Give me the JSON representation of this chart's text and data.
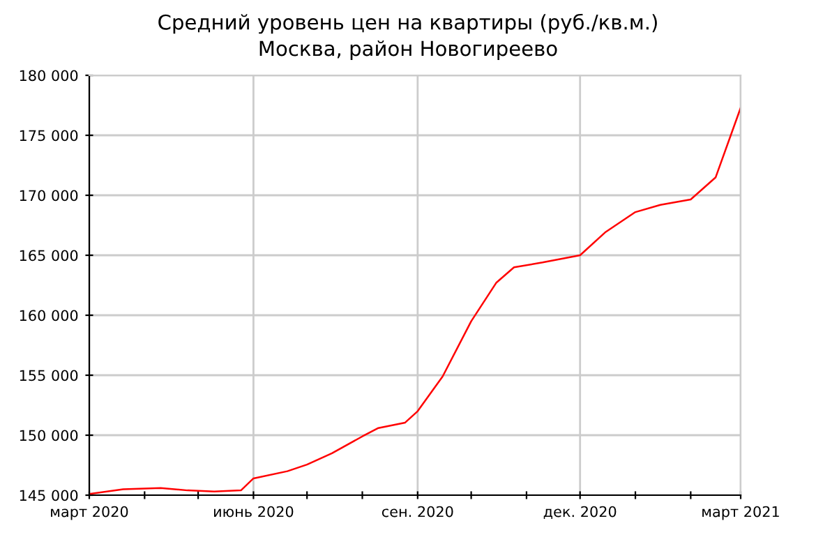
{
  "chart_data": {
    "type": "line",
    "title": "Средний уровень цен на квартиры (руб./кв.м.)",
    "subtitle": "Москва, район Новогиреево",
    "x": [
      "2020-03-01",
      "2020-03-20",
      "2020-04-10",
      "2020-04-25",
      "2020-05-10",
      "2020-05-25",
      "2020-06-01",
      "2020-06-20",
      "2020-07-01",
      "2020-07-15",
      "2020-08-01",
      "2020-08-10",
      "2020-08-25",
      "2020-09-01",
      "2020-09-15",
      "2020-10-01",
      "2020-10-15",
      "2020-10-25",
      "2020-11-10",
      "2020-12-01",
      "2020-12-15",
      "2021-01-01",
      "2021-01-15",
      "2021-02-01",
      "2021-02-15",
      "2021-03-01"
    ],
    "series": [
      {
        "color": "#ff0000",
        "values": [
          145100,
          145500,
          145600,
          145400,
          145300,
          145400,
          146400,
          147000,
          147550,
          148500,
          149900,
          150600,
          151050,
          152000,
          154900,
          159500,
          162700,
          164000,
          164400,
          165000,
          166900,
          168600,
          169200,
          169650,
          171500,
          177300
        ]
      }
    ],
    "xlim": [
      "2020-03-01",
      "2021-03-01"
    ],
    "xticks": [
      {
        "value": "2020-03-01",
        "label": "март 2020"
      },
      {
        "value": "2020-04-01",
        "label": null
      },
      {
        "value": "2020-05-01",
        "label": null
      },
      {
        "value": "2020-06-01",
        "label": "июнь 2020"
      },
      {
        "value": "2020-07-01",
        "label": null
      },
      {
        "value": "2020-08-01",
        "label": null
      },
      {
        "value": "2020-09-01",
        "label": "сен. 2020"
      },
      {
        "value": "2020-10-01",
        "label": null
      },
      {
        "value": "2020-11-01",
        "label": null
      },
      {
        "value": "2020-12-01",
        "label": "дек. 2020"
      },
      {
        "value": "2021-01-01",
        "label": null
      },
      {
        "value": "2021-02-01",
        "label": null
      },
      {
        "value": "2021-03-01",
        "label": "март 2021"
      }
    ],
    "ylim": [
      145000,
      180000
    ],
    "yticks": [
      {
        "value": 145000,
        "label": "145 000"
      },
      {
        "value": 150000,
        "label": "150 000"
      },
      {
        "value": 155000,
        "label": "155 000"
      },
      {
        "value": 160000,
        "label": "160 000"
      },
      {
        "value": 165000,
        "label": "165 000"
      },
      {
        "value": 170000,
        "label": "170 000"
      },
      {
        "value": 175000,
        "label": "175 000"
      },
      {
        "value": 180000,
        "label": "180 000"
      }
    ],
    "grid": true,
    "legend": false,
    "marker": "none",
    "line_style": "solid"
  }
}
